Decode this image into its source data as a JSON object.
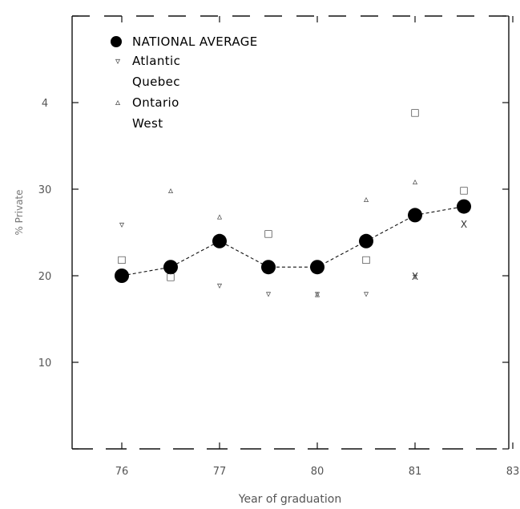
{
  "chart_data": {
    "type": "line",
    "xlabel": "Year of graduation",
    "ylabel": "% Private",
    "x_ticks": [
      "76",
      "77",
      "80",
      "81",
      "83"
    ],
    "y_tick_labels": [
      "",
      "4",
      "30",
      "20",
      "10",
      ""
    ],
    "ylim": [
      0,
      50
    ],
    "legend": [
      "NATIONAL AVERAGE",
      "Atlantic",
      "Quebec",
      "Ontario",
      "West"
    ],
    "legend_position": "top-left",
    "grid": false,
    "series": [
      {
        "name": "NATIONAL AVERAGE",
        "x": [
          1,
          2,
          3,
          4,
          5,
          6,
          7,
          8
        ],
        "y": [
          20,
          21,
          24,
          21,
          21,
          24,
          27,
          28
        ],
        "marker": "filled-circle"
      },
      {
        "name": "Atlantic",
        "x": [
          1,
          3,
          4,
          5,
          6,
          7
        ],
        "y": [
          26,
          19,
          18,
          18,
          18,
          20
        ],
        "marker": "triangle-down"
      },
      {
        "name": "Quebec",
        "x": [
          1,
          2,
          4,
          6,
          7,
          8
        ],
        "y": [
          22,
          20,
          25,
          22,
          39,
          30
        ],
        "marker": "square"
      },
      {
        "name": "Ontario",
        "x": [
          2,
          3,
          5,
          6,
          7
        ],
        "y": [
          30,
          27,
          18,
          29,
          31
        ],
        "marker": "triangle"
      },
      {
        "name": "West",
        "x": [
          7,
          8
        ],
        "y": [
          20,
          26
        ],
        "marker": "x"
      }
    ]
  }
}
